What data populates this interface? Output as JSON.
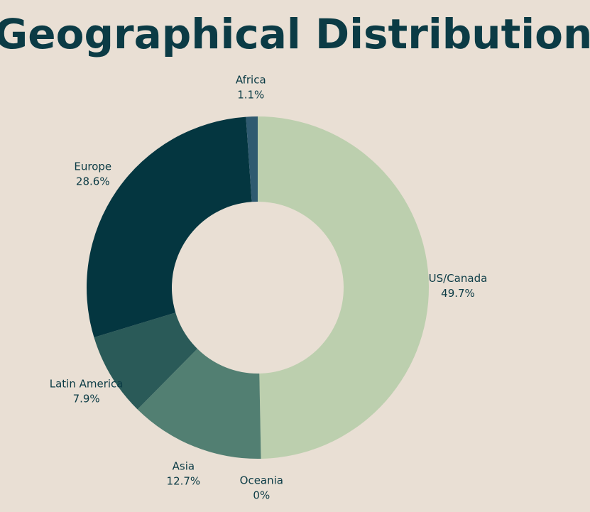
{
  "chart_data": {
    "type": "donut",
    "title": "Geographical Distribution",
    "categories": [
      "US/Canada",
      "Oceania",
      "Asia",
      "Latin America",
      "Europe",
      "Africa"
    ],
    "values": [
      49.7,
      0,
      12.7,
      7.9,
      28.6,
      1.1
    ],
    "value_labels": [
      "49.7%",
      "0%",
      "12.7%",
      "7.9%",
      "28.6%",
      "1.1%"
    ],
    "colors": [
      "#bccfae",
      "#3f6f63",
      "#527f72",
      "#2a5a58",
      "#043640",
      "#2f5a70"
    ]
  }
}
